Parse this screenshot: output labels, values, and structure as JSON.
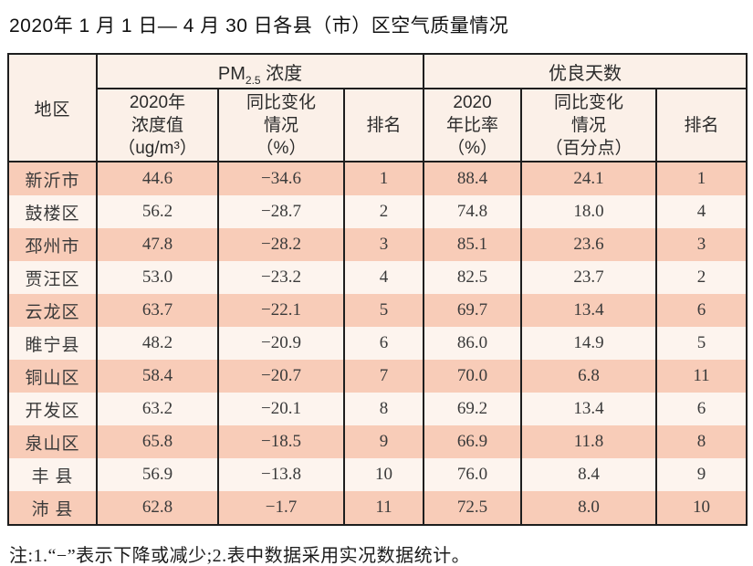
{
  "title": "2020年 1 月 1 日— 4 月 30 日各县（市）区空气质量情况",
  "note": "注:1.“−”表示下降或减少;2.表中数据采用实况数据统计。",
  "colors": {
    "row_odd_bg": "#f8ccb8",
    "row_even_bg": "#fdf4ee",
    "header_bg": "#fbf0e8",
    "border": "#1e1e1e"
  },
  "table": {
    "col_region": "地区",
    "group_pm": {
      "label_prefix": "PM",
      "label_sub": "2.5",
      "label_suffix": " 浓度"
    },
    "group_good_days": "优良天数",
    "subheaders": {
      "pm_value": "2020年\n浓度值\n（ug/m³）",
      "pm_change": "同比变化\n情况\n（%）",
      "pm_rank": "排名",
      "good_ratio": "2020\n年比率\n（%）",
      "good_change": "同比变化\n情况\n（百分点）",
      "good_rank": "排名"
    },
    "rows": [
      {
        "region": "新沂市",
        "pm_value": "44.6",
        "pm_change": "−34.6",
        "pm_rank": "1",
        "good_ratio": "88.4",
        "good_change": "24.1",
        "good_rank": "1"
      },
      {
        "region": "鼓楼区",
        "pm_value": "56.2",
        "pm_change": "−28.7",
        "pm_rank": "2",
        "good_ratio": "74.8",
        "good_change": "18.0",
        "good_rank": "4"
      },
      {
        "region": "邳州市",
        "pm_value": "47.8",
        "pm_change": "−28.2",
        "pm_rank": "3",
        "good_ratio": "85.1",
        "good_change": "23.6",
        "good_rank": "3"
      },
      {
        "region": "贾汪区",
        "pm_value": "53.0",
        "pm_change": "−23.2",
        "pm_rank": "4",
        "good_ratio": "82.5",
        "good_change": "23.7",
        "good_rank": "2"
      },
      {
        "region": "云龙区",
        "pm_value": "63.7",
        "pm_change": "−22.1",
        "pm_rank": "5",
        "good_ratio": "69.7",
        "good_change": "13.4",
        "good_rank": "6"
      },
      {
        "region": "睢宁县",
        "pm_value": "48.2",
        "pm_change": "−20.9",
        "pm_rank": "6",
        "good_ratio": "86.0",
        "good_change": "14.9",
        "good_rank": "5"
      },
      {
        "region": "铜山区",
        "pm_value": "58.4",
        "pm_change": "−20.7",
        "pm_rank": "7",
        "good_ratio": "70.0",
        "good_change": "6.8",
        "good_rank": "11"
      },
      {
        "region": "开发区",
        "pm_value": "63.2",
        "pm_change": "−20.1",
        "pm_rank": "8",
        "good_ratio": "69.2",
        "good_change": "13.4",
        "good_rank": "6"
      },
      {
        "region": "泉山区",
        "pm_value": "65.8",
        "pm_change": "−18.5",
        "pm_rank": "9",
        "good_ratio": "66.9",
        "good_change": "11.8",
        "good_rank": "8"
      },
      {
        "region": "丰 县",
        "pm_value": "56.9",
        "pm_change": "−13.8",
        "pm_rank": "10",
        "good_ratio": "76.0",
        "good_change": "8.4",
        "good_rank": "9"
      },
      {
        "region": "沛 县",
        "pm_value": "62.8",
        "pm_change": "−1.7",
        "pm_rank": "11",
        "good_ratio": "72.5",
        "good_change": "8.0",
        "good_rank": "10"
      }
    ]
  }
}
